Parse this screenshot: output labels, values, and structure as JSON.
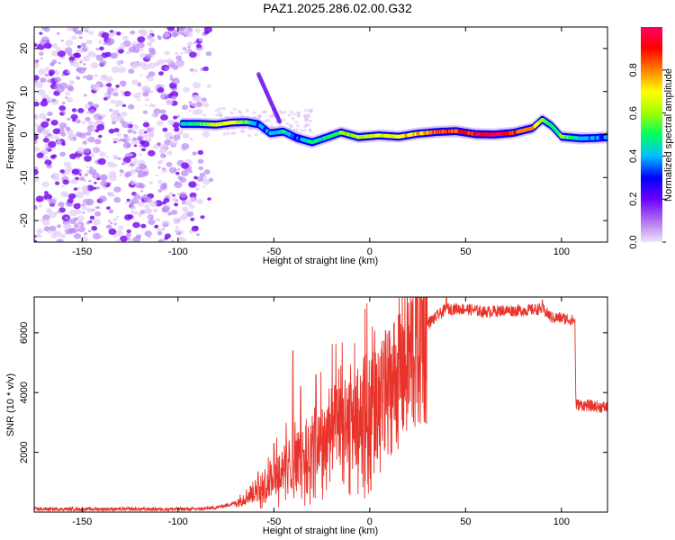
{
  "title": "PAZ1.2025.286.02.00.G32",
  "colors": {
    "snr_line": "#e8332a",
    "scatter_noise": "#8a2be2",
    "frame": "#000000"
  },
  "chart_data": [
    {
      "type": "heatmap",
      "name": "spectrogram",
      "xlabel": "Height of straight line (km)",
      "ylabel": "Frequency (Hz)",
      "xlim": [
        -175,
        124
      ],
      "ylim": [
        -25,
        25
      ],
      "xticks": [
        -150,
        -100,
        -50,
        0,
        50,
        100
      ],
      "yticks": [
        -20,
        -10,
        0,
        10,
        20
      ],
      "colorbar": {
        "label": "Normalized spectral amplitude",
        "range": [
          0,
          1
        ],
        "ticks": [
          "0.0",
          "0.2",
          "0.4",
          "0.6",
          "0.8"
        ],
        "tick_values": [
          0.0,
          0.2,
          0.4,
          0.6,
          0.8
        ],
        "colors": [
          "#f0e4fa",
          "#b070f0",
          "#6a00ff",
          "#0000ff",
          "#00c0ff",
          "#00ff60",
          "#a0ff00",
          "#ffff00",
          "#ff8000",
          "#ff0000",
          "#ff0060"
        ]
      },
      "noise_region_km": [
        -175,
        -80
      ],
      "ridge": [
        {
          "x": -98,
          "y": 2.5,
          "a": 0.45
        },
        {
          "x": -90,
          "y": 2.5,
          "a": 0.5
        },
        {
          "x": -80,
          "y": 2.3,
          "a": 0.65
        },
        {
          "x": -72,
          "y": 2.8,
          "a": 0.7
        },
        {
          "x": -64,
          "y": 2.9,
          "a": 0.55
        },
        {
          "x": -58,
          "y": 2.4,
          "a": 0.35
        },
        {
          "x": -52,
          "y": 0.3,
          "a": 0.4
        },
        {
          "x": -45,
          "y": 0.7,
          "a": 0.45
        },
        {
          "x": -38,
          "y": -0.8,
          "a": 0.35
        },
        {
          "x": -30,
          "y": -1.8,
          "a": 0.5
        },
        {
          "x": -22,
          "y": -0.6,
          "a": 0.45
        },
        {
          "x": -15,
          "y": 0.5,
          "a": 0.55
        },
        {
          "x": -6,
          "y": -0.6,
          "a": 0.6
        },
        {
          "x": 5,
          "y": -0.2,
          "a": 0.65
        },
        {
          "x": 15,
          "y": -0.5,
          "a": 0.7
        },
        {
          "x": 25,
          "y": 0.2,
          "a": 0.75
        },
        {
          "x": 35,
          "y": 0.6,
          "a": 0.85
        },
        {
          "x": 45,
          "y": 0.8,
          "a": 0.85
        },
        {
          "x": 55,
          "y": 0.1,
          "a": 0.9
        },
        {
          "x": 65,
          "y": 0.0,
          "a": 0.95
        },
        {
          "x": 75,
          "y": 0.4,
          "a": 0.85
        },
        {
          "x": 85,
          "y": 1.5,
          "a": 0.75
        },
        {
          "x": 90,
          "y": 3.5,
          "a": 0.6
        },
        {
          "x": 95,
          "y": 2.0,
          "a": 0.45
        },
        {
          "x": 100,
          "y": -0.5,
          "a": 0.6
        },
        {
          "x": 110,
          "y": -0.9,
          "a": 0.4
        },
        {
          "x": 118,
          "y": -0.8,
          "a": 0.35
        },
        {
          "x": 124,
          "y": -0.6,
          "a": 0.35
        }
      ],
      "branch": [
        {
          "x": -58,
          "y": 14,
          "a": 0.25
        },
        {
          "x": -54,
          "y": 10,
          "a": 0.3
        },
        {
          "x": -50,
          "y": 6,
          "a": 0.28
        },
        {
          "x": -47,
          "y": 3,
          "a": 0.3
        }
      ]
    },
    {
      "type": "line",
      "name": "snr",
      "xlabel": "Height of straight line (km)",
      "ylabel": "SNR (10 * v/v)",
      "xlim": [
        -175,
        124
      ],
      "ylim": [
        0,
        7200
      ],
      "xticks": [
        -150,
        -100,
        -50,
        0,
        50,
        100
      ],
      "yticks": [
        2000,
        4000,
        6000
      ],
      "envelope": [
        {
          "x": -175,
          "y": 100
        },
        {
          "x": -90,
          "y": 100
        },
        {
          "x": -80,
          "y": 150
        },
        {
          "x": -70,
          "y": 300
        },
        {
          "x": -60,
          "y": 700
        },
        {
          "x": -50,
          "y": 1200
        },
        {
          "x": -40,
          "y": 1700
        },
        {
          "x": -30,
          "y": 2200
        },
        {
          "x": -20,
          "y": 2700
        },
        {
          "x": -10,
          "y": 3000
        },
        {
          "x": 0,
          "y": 3400
        },
        {
          "x": 10,
          "y": 4100
        },
        {
          "x": 20,
          "y": 5100
        },
        {
          "x": 30,
          "y": 6300
        },
        {
          "x": 40,
          "y": 6800
        },
        {
          "x": 50,
          "y": 6800
        },
        {
          "x": 60,
          "y": 6700
        },
        {
          "x": 70,
          "y": 6750
        },
        {
          "x": 80,
          "y": 6750
        },
        {
          "x": 90,
          "y": 6800
        },
        {
          "x": 95,
          "y": 6500
        },
        {
          "x": 100,
          "y": 6500
        },
        {
          "x": 107,
          "y": 6400
        },
        {
          "x": 107.5,
          "y": 3600
        },
        {
          "x": 124,
          "y": 3500
        }
      ],
      "spikes": [
        {
          "x": -50,
          "y": 2300
        },
        {
          "x": -40,
          "y": 5400
        },
        {
          "x": -36,
          "y": 4200
        },
        {
          "x": -28,
          "y": 4600
        },
        {
          "x": -17,
          "y": 4100
        },
        {
          "x": 40,
          "y": 7200
        },
        {
          "x": 90,
          "y": 7100
        }
      ]
    }
  ]
}
